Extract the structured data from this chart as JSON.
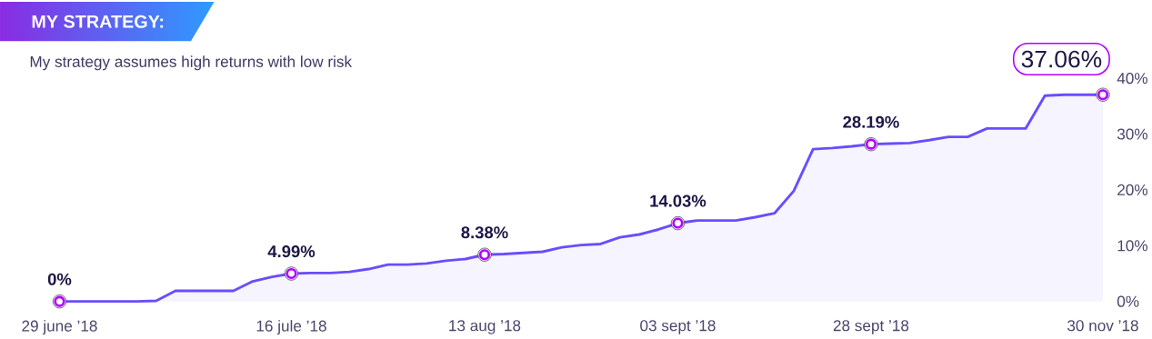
{
  "chart_data": {
    "type": "area",
    "title": "MY STRATEGY:",
    "subtitle": "My strategy assumes high returns with low risk",
    "categories": [
      "29 june ’18",
      null,
      null,
      null,
      null,
      null,
      null,
      null,
      null,
      null,
      null,
      null,
      "16 jule ’18",
      null,
      null,
      null,
      null,
      null,
      null,
      null,
      null,
      null,
      "13 aug ’18",
      null,
      null,
      null,
      null,
      null,
      null,
      null,
      null,
      null,
      "03 sept ’18",
      null,
      null,
      null,
      null,
      null,
      null,
      null,
      null,
      null,
      "28 sept ’18",
      null,
      null,
      null,
      null,
      null,
      null,
      null,
      null,
      null,
      null,
      null,
      "30 nov ’18"
    ],
    "values": [
      0,
      0,
      0,
      0,
      0,
      0.1,
      1.9,
      1.9,
      1.9,
      1.9,
      3.6,
      4.4,
      4.99,
      5.1,
      5.1,
      5.3,
      5.8,
      6.6,
      6.6,
      6.8,
      7.3,
      7.6,
      8.38,
      8.5,
      8.7,
      8.9,
      9.7,
      10.1,
      10.3,
      11.5,
      12.0,
      12.9,
      14.03,
      14.5,
      14.5,
      14.5,
      15.1,
      15.8,
      19.8,
      27.3,
      27.5,
      27.8,
      28.19,
      28.3,
      28.4,
      28.9,
      29.5,
      29.5,
      31.0,
      31.0,
      31.0,
      36.9,
      37.06,
      37.06,
      37.06
    ],
    "value_labels": [
      "0%",
      null,
      null,
      null,
      null,
      null,
      null,
      null,
      null,
      null,
      null,
      null,
      "4.99%",
      null,
      null,
      null,
      null,
      null,
      null,
      null,
      null,
      null,
      "8.38%",
      null,
      null,
      null,
      null,
      null,
      null,
      null,
      null,
      null,
      "14.03%",
      null,
      null,
      null,
      null,
      null,
      null,
      null,
      null,
      null,
      "28.19%",
      null,
      null,
      null,
      null,
      null,
      null,
      null,
      null,
      null,
      null,
      null,
      "37.06%"
    ],
    "color": "#6a4cff",
    "ylim": [
      0,
      40
    ],
    "yticks": [
      {
        "value": 0,
        "label": "0%"
      },
      {
        "value": 10,
        "label": "10%"
      },
      {
        "value": 20,
        "label": "20%"
      },
      {
        "value": 30,
        "label": "30%"
      },
      {
        "value": 40,
        "label": "40%"
      }
    ]
  }
}
